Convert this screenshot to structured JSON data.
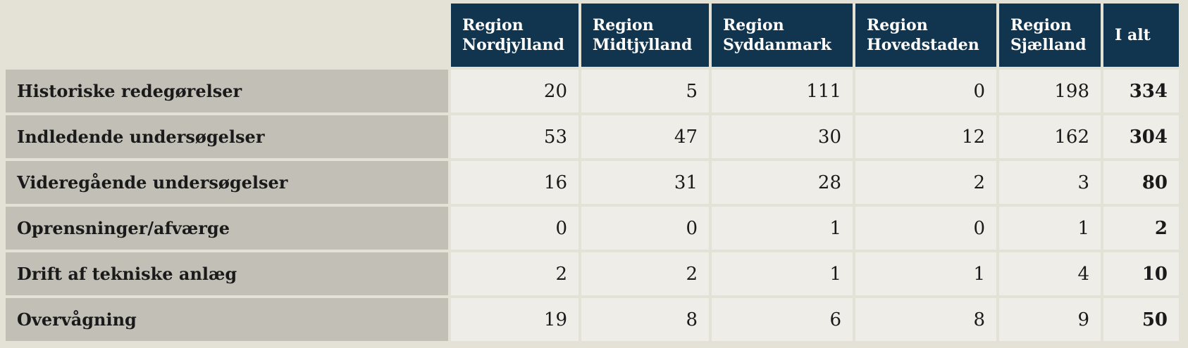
{
  "table": {
    "columns": [
      [
        "Region",
        "Nordjylland"
      ],
      [
        "Region",
        "Midtjylland"
      ],
      [
        "Region",
        "Syddanmark"
      ],
      [
        "Region",
        "Hovedstaden"
      ],
      [
        "Region",
        "Sjælland"
      ],
      [
        "I alt"
      ]
    ],
    "rows": [
      {
        "label": "Historiske redegørelser",
        "values": [
          20,
          5,
          111,
          0,
          198,
          334
        ]
      },
      {
        "label": "Indledende undersøgelser",
        "values": [
          53,
          47,
          30,
          12,
          162,
          304
        ]
      },
      {
        "label": "Videregående undersøgelser",
        "values": [
          16,
          31,
          28,
          2,
          3,
          80
        ]
      },
      {
        "label": "Oprensninger/afværge",
        "values": [
          0,
          0,
          1,
          0,
          1,
          2
        ]
      },
      {
        "label": "Drift af tekniske anlæg",
        "values": [
          2,
          2,
          1,
          1,
          4,
          10
        ]
      },
      {
        "label": "Overvågning",
        "values": [
          19,
          8,
          6,
          8,
          9,
          50
        ]
      }
    ]
  }
}
